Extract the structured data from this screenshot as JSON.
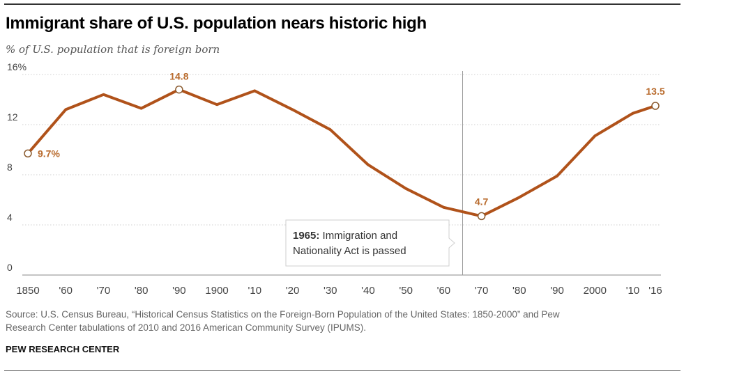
{
  "header": {
    "title": "Immigrant share of U.S. population nears historic high",
    "subtitle": "% of U.S. population that is foreign born"
  },
  "chart_data": {
    "type": "line",
    "title": "Immigrant share of U.S. population nears historic high",
    "subtitle": "% of U.S. population that is foreign born",
    "xlabel": "",
    "ylabel": "",
    "ylim": [
      0,
      16
    ],
    "yticks": [
      0,
      4,
      8,
      12,
      16
    ],
    "ytick_labels": [
      "0",
      "4",
      "8",
      "12",
      "16%"
    ],
    "xlim": [
      1850,
      2016
    ],
    "xticks": [
      1850,
      1860,
      1870,
      1880,
      1890,
      1900,
      1910,
      1920,
      1930,
      1940,
      1950,
      1960,
      1970,
      1980,
      1990,
      2000,
      2010,
      2016
    ],
    "xtick_labels": [
      "1850",
      "'60",
      "'70",
      "'80",
      "'90",
      "1900",
      "'10",
      "'20",
      "'30",
      "'40",
      "'50",
      "'60",
      "'70",
      "'80",
      "'90",
      "2000",
      "'10",
      "'16"
    ],
    "grid": "horizontal dotted",
    "line_color": "#b0521a",
    "label_color": "#b86a2c",
    "series": [
      {
        "x": [
          1850,
          1860,
          1870,
          1880,
          1890,
          1900,
          1910,
          1920,
          1930,
          1940,
          1950,
          1960,
          1970,
          1980,
          1990,
          2000,
          2010,
          2016
        ],
        "values": [
          9.7,
          13.2,
          14.4,
          13.3,
          14.8,
          13.6,
          14.7,
          13.2,
          11.6,
          8.8,
          6.9,
          5.4,
          4.7,
          6.2,
          7.9,
          11.1,
          12.9,
          13.5
        ]
      }
    ],
    "data_labels": [
      {
        "x": 1850,
        "y": 9.7,
        "text": "9.7%"
      },
      {
        "x": 1890,
        "y": 14.8,
        "text": "14.8"
      },
      {
        "x": 1970,
        "y": 4.7,
        "text": "4.7"
      },
      {
        "x": 2016,
        "y": 13.5,
        "text": "13.5"
      }
    ],
    "annotation": {
      "x": 1965,
      "year": "1965:",
      "line1": "Immigration and",
      "line2": "Nationality Act is passed"
    }
  },
  "footer": {
    "source_line1": "Source: U.S. Census Bureau, “Historical Census Statistics on the Foreign-Born Population of the United States: 1850-2000” and Pew",
    "source_line2": "Research Center tabulations of 2010 and 2016 American Community Survey (IPUMS).",
    "credit": "PEW RESEARCH CENTER"
  }
}
